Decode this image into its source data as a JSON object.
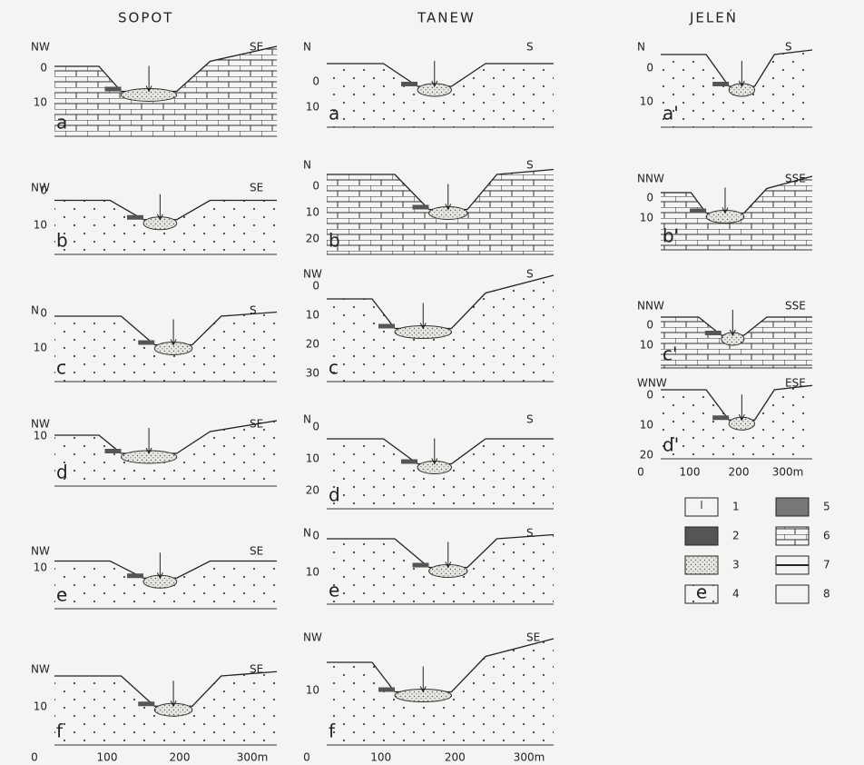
{
  "columns": [
    {
      "title": "SOPOT",
      "panels": [
        {
          "letter": "a",
          "left": "NW",
          "right": "SE",
          "depths": [
            "0",
            "10"
          ]
        },
        {
          "letter": "b",
          "left": "NW",
          "right": "SE",
          "depths": [
            "0",
            "10"
          ]
        },
        {
          "letter": "c",
          "left": "N",
          "right": "S",
          "depths": [
            "0",
            "10"
          ]
        },
        {
          "letter": "d",
          "left": "NW",
          "right": "SE",
          "depths": [
            "10"
          ]
        },
        {
          "letter": "e",
          "left": "NW",
          "right": "SE",
          "depths": [
            "10"
          ]
        },
        {
          "letter": "f",
          "left": "NW",
          "right": "SE",
          "depths": [
            "10"
          ]
        }
      ],
      "x_axis": [
        "0",
        "100",
        "200",
        "300m"
      ]
    },
    {
      "title": "TANEW",
      "panels": [
        {
          "letter": "a",
          "left": "N",
          "right": "S",
          "depths": [
            "0",
            "10"
          ]
        },
        {
          "letter": "b",
          "left": "N",
          "right": "S",
          "depths": [
            "0",
            "10",
            "20"
          ]
        },
        {
          "letter": "c",
          "left": "NW",
          "right": "S",
          "depths": [
            "0",
            "10",
            "20",
            "30"
          ]
        },
        {
          "letter": "d",
          "left": "N",
          "right": "S",
          "depths": [
            "0",
            "10",
            "20"
          ]
        },
        {
          "letter": "e",
          "left": "N",
          "right": "S",
          "depths": [
            "0",
            "10"
          ]
        },
        {
          "letter": "f",
          "left": "NW",
          "right": "SE",
          "depths": [
            "10"
          ]
        }
      ],
      "x_axis": [
        "0",
        "100",
        "200",
        "300m"
      ]
    },
    {
      "title": "JELEŃ",
      "panels": [
        {
          "letter": "a'",
          "left": "N",
          "right": "S",
          "depths": [
            "0",
            "10"
          ]
        },
        {
          "letter": "b'",
          "left": "NNW",
          "right": "SSE",
          "depths": [
            "0",
            "10"
          ]
        },
        {
          "letter": "c'",
          "left": "NNW",
          "right": "SSE",
          "depths": [
            "0",
            "10"
          ]
        },
        {
          "letter": "d'",
          "left": "WNW",
          "right": "ESE",
          "depths": [
            "0",
            "10",
            "20"
          ]
        }
      ],
      "x_axis": [
        "0",
        "100",
        "200",
        "300m"
      ]
    }
  ],
  "legend": {
    "items": [
      "1",
      "2",
      "3",
      "4",
      "5",
      "6",
      "7",
      "8"
    ],
    "sample": "e"
  }
}
